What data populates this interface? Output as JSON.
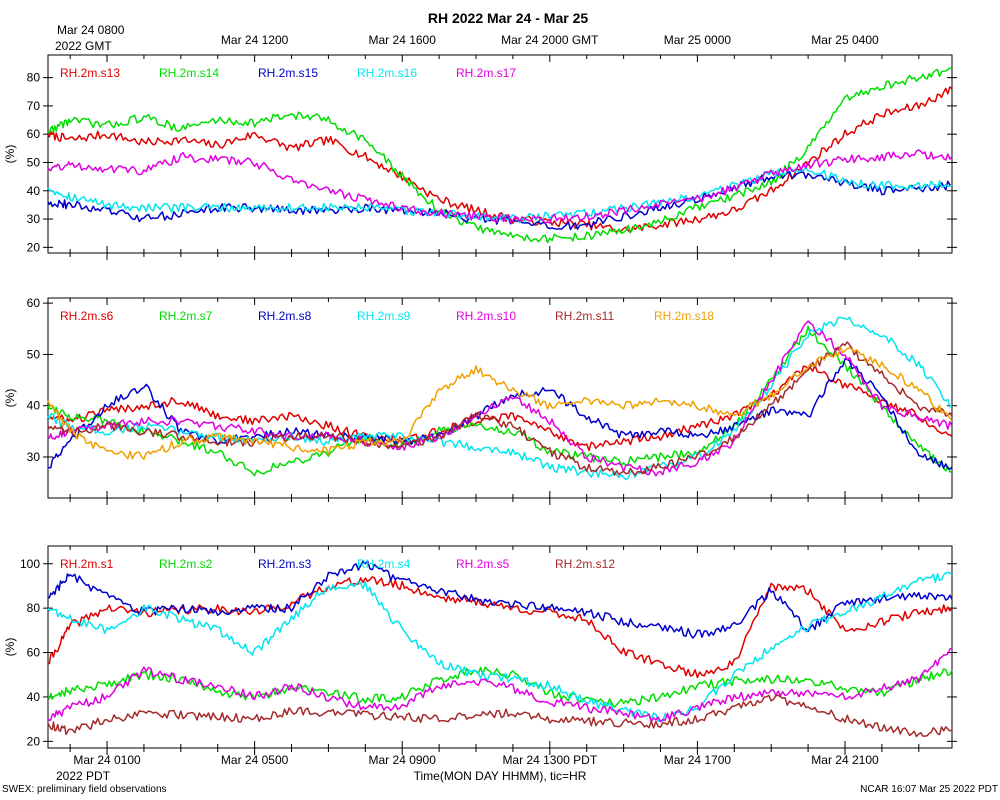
{
  "title": "RH 2022 Mar 24 - Mar 25",
  "top_axis": {
    "first_label": "Mar 24 0800",
    "first_label_year": "2022 GMT",
    "labels": [
      "Mar 24 1200",
      "Mar 24 1600",
      "Mar 24 2000 GMT",
      "Mar 25 0000",
      "Mar 25 0400"
    ]
  },
  "bottom_axis": {
    "labels": [
      "Mar 24 0100",
      "Mar 24 0500",
      "Mar 24 0900",
      "Mar 24 1300 PDT",
      "Mar 24 1700",
      "Mar 24 2100"
    ],
    "year_label": "2022 PDT",
    "xlabel": "Time(MON DAY HHMM), tic=HR"
  },
  "footer_left": "SWEX: preliminary field observations",
  "footer_right": "NCAR 16:07 Mar 25 2022 PDT",
  "colors": {
    "red": "#e00000",
    "green": "#00dd00",
    "blue": "#0000cc",
    "cyan": "#00e5ee",
    "magenta": "#e000e0",
    "brown": "#a52a2a",
    "orange": "#f0a000"
  },
  "chart_data": [
    {
      "type": "line",
      "ylabel": "(%)",
      "ylim": [
        18,
        88
      ],
      "yticks": [
        20,
        30,
        40,
        50,
        60,
        70,
        80
      ],
      "x_unit": "hours since Mar 24 0000 PDT",
      "xlim": [
        -0.6,
        23.9
      ],
      "series": [
        {
          "name": "RH.2m.s13",
          "color": "#e00000",
          "x": [
            -0.6,
            0,
            1,
            2,
            3,
            4,
            5,
            6,
            7,
            8,
            9,
            10,
            11,
            12,
            13,
            14,
            15,
            16,
            17,
            18,
            19,
            20,
            21,
            22,
            23,
            23.9
          ],
          "values": [
            60,
            58,
            60,
            57,
            58,
            56,
            60,
            55,
            58,
            52,
            45,
            37,
            33,
            30,
            29,
            28,
            26,
            28,
            30,
            33,
            40,
            50,
            60,
            67,
            70,
            76
          ]
        },
        {
          "name": "RH.2m.s14",
          "color": "#00dd00",
          "x": [
            -0.6,
            0,
            1,
            2,
            3,
            4,
            5,
            6,
            7,
            8,
            9,
            10,
            11,
            12,
            13,
            14,
            15,
            16,
            17,
            18,
            19,
            20,
            21,
            22,
            23,
            23.9
          ],
          "values": [
            61,
            65,
            63,
            66,
            62,
            65,
            64,
            67,
            65,
            58,
            45,
            33,
            27,
            24,
            23,
            24,
            26,
            29,
            34,
            38,
            43,
            55,
            72,
            77,
            80,
            83
          ]
        },
        {
          "name": "RH.2m.s15",
          "color": "#0000cc",
          "x": [
            -0.6,
            0,
            1,
            2,
            3,
            4,
            5,
            6,
            7,
            8,
            9,
            10,
            11,
            12,
            13,
            14,
            15,
            16,
            17,
            18,
            19,
            20,
            21,
            22,
            23,
            23.9
          ],
          "values": [
            36,
            35,
            33,
            30,
            32,
            34,
            34,
            33,
            33,
            34,
            33,
            32,
            30,
            29,
            27,
            28,
            31,
            34,
            37,
            41,
            45,
            46,
            43,
            40,
            41,
            42
          ]
        },
        {
          "name": "RH.2m.s16",
          "color": "#00e5ee",
          "x": [
            -0.6,
            0,
            1,
            2,
            3,
            4,
            5,
            6,
            7,
            8,
            9,
            10,
            11,
            12,
            13,
            14,
            15,
            16,
            17,
            18,
            19,
            20,
            21,
            22,
            23,
            23.9
          ],
          "values": [
            41,
            38,
            35,
            34,
            34,
            34,
            34,
            34,
            34,
            34,
            33,
            32,
            31,
            30,
            31,
            32,
            34,
            36,
            38,
            42,
            46,
            48,
            43,
            42,
            42,
            42
          ]
        },
        {
          "name": "RH.2m.s17",
          "color": "#e000e0",
          "x": [
            -0.6,
            0,
            1,
            2,
            3,
            4,
            5,
            6,
            7,
            8,
            9,
            10,
            11,
            12,
            13,
            14,
            15,
            16,
            17,
            18,
            19,
            20,
            21,
            22,
            23,
            23.9
          ],
          "values": [
            48,
            49,
            48,
            47,
            52,
            51,
            50,
            44,
            40,
            37,
            34,
            32,
            31,
            30,
            30,
            31,
            33,
            35,
            37,
            41,
            46,
            49,
            51,
            52,
            53,
            52
          ]
        }
      ]
    },
    {
      "type": "line",
      "ylabel": "(%)",
      "ylim": [
        22,
        61
      ],
      "yticks": [
        30,
        40,
        50,
        60
      ],
      "x_unit": "hours since Mar 24 0000 PDT",
      "xlim": [
        -0.6,
        23.9
      ],
      "series": [
        {
          "name": "RH.2m.s6",
          "color": "#e00000",
          "x": [
            -0.6,
            0,
            1,
            2,
            3,
            4,
            5,
            6,
            7,
            8,
            9,
            10,
            11,
            12,
            13,
            14,
            15,
            16,
            17,
            18,
            19,
            20,
            21,
            22,
            23,
            23.9
          ],
          "values": [
            38,
            37,
            39,
            40,
            41,
            38,
            37,
            38,
            36,
            34,
            33,
            35,
            37,
            38,
            35,
            32,
            33,
            34,
            36,
            38,
            42,
            48,
            44,
            41,
            38,
            34
          ]
        },
        {
          "name": "RH.2m.s7",
          "color": "#00dd00",
          "x": [
            -0.6,
            0,
            1,
            2,
            3,
            4,
            5,
            6,
            7,
            8,
            9,
            10,
            11,
            12,
            13,
            14,
            15,
            16,
            17,
            18,
            19,
            20,
            21,
            22,
            23,
            23.9
          ],
          "values": [
            40,
            38,
            37,
            35,
            33,
            31,
            27,
            29,
            31,
            34,
            32,
            35,
            36,
            35,
            31,
            30,
            29,
            30,
            31,
            36,
            45,
            55,
            48,
            40,
            32,
            27
          ]
        },
        {
          "name": "RH.2m.s8",
          "color": "#0000cc",
          "x": [
            -0.6,
            0,
            1,
            2,
            3,
            4,
            5,
            6,
            7,
            8,
            9,
            10,
            11,
            12,
            13,
            14,
            15,
            16,
            17,
            18,
            19,
            20,
            21,
            22,
            23,
            23.9
          ],
          "values": [
            28,
            33,
            40,
            44,
            35,
            33,
            34,
            35,
            34,
            34,
            33,
            34,
            38,
            42,
            43,
            38,
            34,
            35,
            34,
            36,
            39,
            38,
            49,
            42,
            30,
            28
          ]
        },
        {
          "name": "RH.2m.s9",
          "color": "#00e5ee",
          "x": [
            -0.6,
            0,
            1,
            2,
            3,
            4,
            5,
            6,
            7,
            8,
            9,
            10,
            11,
            12,
            13,
            14,
            15,
            16,
            17,
            18,
            19,
            20,
            21,
            22,
            23,
            23.9
          ],
          "values": [
            38,
            36,
            35,
            36,
            35,
            34,
            33,
            34,
            33,
            34,
            34,
            33,
            32,
            31,
            28,
            27,
            26,
            28,
            30,
            35,
            44,
            54,
            57,
            54,
            48,
            40
          ]
        },
        {
          "name": "RH.2m.s10",
          "color": "#e000e0",
          "x": [
            -0.6,
            0,
            1,
            2,
            3,
            4,
            5,
            6,
            7,
            8,
            9,
            10,
            11,
            12,
            13,
            14,
            15,
            16,
            17,
            18,
            19,
            20,
            21,
            22,
            23,
            23.9
          ],
          "values": [
            34,
            35,
            36,
            37,
            37,
            36,
            35,
            34,
            34,
            33,
            32,
            34,
            38,
            42,
            37,
            30,
            28,
            27,
            29,
            33,
            45,
            56,
            50,
            40,
            38,
            36
          ]
        },
        {
          "name": "RH.2m.s11",
          "color": "#a52a2a",
          "x": [
            -0.6,
            0,
            1,
            2,
            3,
            4,
            5,
            6,
            7,
            8,
            9,
            10,
            11,
            12,
            13,
            14,
            15,
            16,
            17,
            18,
            19,
            20,
            21,
            22,
            23,
            23.9
          ],
          "values": [
            36,
            35,
            36,
            35,
            34,
            33,
            33,
            34,
            34,
            33,
            32,
            34,
            38,
            36,
            31,
            28,
            27,
            28,
            30,
            34,
            40,
            47,
            52,
            46,
            40,
            38
          ]
        },
        {
          "name": "RH.2m.s18",
          "color": "#f0a000",
          "x": [
            -0.6,
            0,
            1,
            2,
            3,
            4,
            5,
            6,
            7,
            8,
            9,
            10,
            11,
            12,
            13,
            14,
            15,
            16,
            17,
            18,
            19,
            20,
            21,
            22,
            23,
            23.9
          ],
          "values": [
            41,
            35,
            31,
            30,
            33,
            34,
            33,
            32,
            31,
            33,
            33,
            43,
            47,
            43,
            40,
            41,
            40,
            41,
            40,
            38,
            42,
            48,
            51,
            48,
            43,
            37
          ]
        }
      ]
    },
    {
      "type": "line",
      "ylabel": "(%)",
      "ylim": [
        17,
        108
      ],
      "yticks": [
        20,
        40,
        60,
        80,
        100
      ],
      "x_unit": "hours since Mar 24 0000 PDT",
      "xlim": [
        -0.6,
        23.9
      ],
      "series": [
        {
          "name": "RH.2m.s1",
          "color": "#e00000",
          "x": [
            -0.6,
            0,
            1,
            2,
            3,
            4,
            5,
            6,
            7,
            8,
            9,
            10,
            11,
            12,
            13,
            14,
            15,
            16,
            17,
            18,
            19,
            20,
            21,
            22,
            23,
            23.9
          ],
          "values": [
            55,
            72,
            80,
            78,
            79,
            80,
            78,
            82,
            90,
            93,
            90,
            85,
            83,
            80,
            78,
            75,
            60,
            55,
            50,
            55,
            90,
            88,
            70,
            74,
            78,
            80
          ]
        },
        {
          "name": "RH.2m.s2",
          "color": "#00dd00",
          "x": [
            -0.6,
            0,
            1,
            2,
            3,
            4,
            5,
            6,
            7,
            8,
            9,
            10,
            11,
            12,
            13,
            14,
            15,
            16,
            17,
            18,
            19,
            20,
            21,
            22,
            23,
            23.9
          ],
          "values": [
            40,
            43,
            46,
            50,
            48,
            42,
            40,
            44,
            42,
            39,
            40,
            48,
            52,
            50,
            42,
            38,
            37,
            40,
            45,
            47,
            48,
            47,
            44,
            42,
            48,
            52
          ]
        },
        {
          "name": "RH.2m.s3",
          "color": "#0000cc",
          "x": [
            -0.6,
            0,
            1,
            2,
            3,
            4,
            5,
            6,
            7,
            8,
            9,
            10,
            11,
            12,
            13,
            14,
            15,
            16,
            17,
            18,
            19,
            20,
            21,
            22,
            23,
            23.9
          ],
          "values": [
            85,
            95,
            85,
            78,
            80,
            78,
            80,
            80,
            95,
            100,
            92,
            88,
            84,
            82,
            80,
            78,
            74,
            72,
            68,
            72,
            88,
            70,
            82,
            84,
            86,
            84
          ]
        },
        {
          "name": "RH.2m.s4",
          "color": "#00e5ee",
          "x": [
            -0.6,
            0,
            1,
            2,
            3,
            4,
            5,
            6,
            7,
            8,
            9,
            10,
            11,
            12,
            13,
            14,
            15,
            16,
            17,
            18,
            19,
            20,
            21,
            22,
            23,
            23.9
          ],
          "values": [
            80,
            75,
            70,
            80,
            75,
            70,
            60,
            75,
            90,
            90,
            70,
            55,
            50,
            48,
            45,
            38,
            34,
            30,
            35,
            50,
            62,
            72,
            78,
            85,
            92,
            95
          ]
        },
        {
          "name": "RH.2m.s5",
          "color": "#e000e0",
          "x": [
            -0.6,
            0,
            1,
            2,
            3,
            4,
            5,
            6,
            7,
            8,
            9,
            10,
            11,
            12,
            13,
            14,
            15,
            16,
            17,
            18,
            19,
            20,
            21,
            22,
            23,
            23.9
          ],
          "values": [
            30,
            35,
            40,
            52,
            48,
            45,
            40,
            45,
            40,
            35,
            36,
            45,
            47,
            44,
            38,
            35,
            33,
            30,
            35,
            40,
            42,
            42,
            40,
            44,
            48,
            62
          ]
        },
        {
          "name": "RH.2m.s12",
          "color": "#a52a2a",
          "x": [
            -0.6,
            0,
            1,
            2,
            3,
            4,
            5,
            6,
            7,
            8,
            9,
            10,
            11,
            12,
            13,
            14,
            15,
            16,
            17,
            18,
            19,
            20,
            21,
            22,
            23,
            23.9
          ],
          "values": [
            28,
            24,
            30,
            32,
            32,
            31,
            30,
            34,
            33,
            32,
            31,
            30,
            32,
            33,
            30,
            29,
            28,
            28,
            30,
            35,
            40,
            36,
            30,
            26,
            24,
            25
          ]
        }
      ]
    }
  ]
}
